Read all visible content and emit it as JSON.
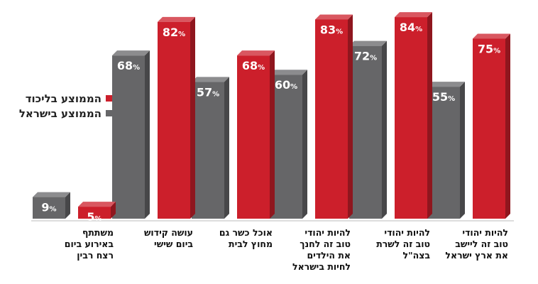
{
  "legend": {
    "likud_label": "הממוצע בליכוד",
    "israel_label": "הממוצע בישראל"
  },
  "colors": {
    "likud": "#cc1f2b",
    "israel": "#666668"
  },
  "chart_data": {
    "type": "bar",
    "title": "",
    "xlabel": "",
    "ylabel": "",
    "ylim": [
      0,
      90
    ],
    "categories": [
      "להיות יהודי\nטוב זה ליישב\nאת ארץ ישראל",
      "להיות יהודי\nטוב זה לשרת\nבצה\"ל",
      "להיות יהודי\nטוב זה לחנך\nאת הילדים\nלחיות בישראל",
      "אוכל כשר גם\nמחוץ לבית",
      "עושה קידוש\nביום שישי",
      "משתתף\nבאירוע ביום\nרצח רבין"
    ],
    "series": [
      {
        "name": "הממוצע בליכוד",
        "values": [
          75,
          84,
          83,
          68,
          82,
          5
        ]
      },
      {
        "name": "הממוצע בישראל",
        "values": [
          55,
          72,
          60,
          57,
          68,
          9
        ]
      }
    ],
    "value_suffix": "%"
  }
}
